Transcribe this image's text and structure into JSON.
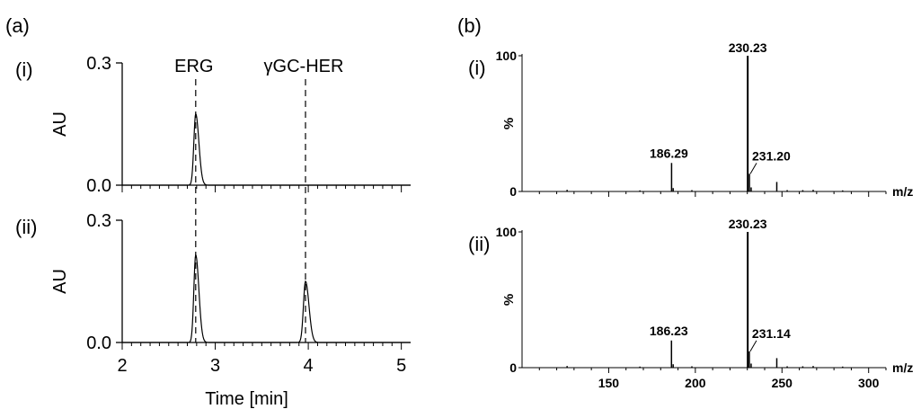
{
  "panel_labels": {
    "a": "(a)",
    "b": "(b)"
  },
  "chart_data": [
    {
      "type": "line",
      "panel": "(a)",
      "subpanel": "(i)",
      "ylabel": "AU",
      "xlabel": "",
      "xlim": [
        2,
        5.1
      ],
      "ylim": [
        0,
        0.3
      ],
      "yticks": [
        0.0,
        0.3
      ],
      "ytick_labels": [
        "0.0",
        "0.3"
      ],
      "peaks": [
        {
          "x": 2.79,
          "height": 0.175,
          "width": 0.02
        }
      ],
      "annotations": [
        {
          "text": "ERG",
          "x": 2.79
        },
        {
          "text": "γGC-HER",
          "x": 3.97
        }
      ]
    },
    {
      "type": "line",
      "panel": "(a)",
      "subpanel": "(ii)",
      "ylabel": "AU",
      "xlabel": "Time [min]",
      "xlim": [
        2,
        5.1
      ],
      "ylim": [
        0,
        0.3
      ],
      "yticks": [
        0.0,
        0.3
      ],
      "ytick_labels": [
        "0.0",
        "0.3"
      ],
      "xticks": [
        2,
        3,
        4,
        5
      ],
      "xtick_labels": [
        "2",
        "3",
        "4",
        "5"
      ],
      "peaks": [
        {
          "x": 2.79,
          "height": 0.215,
          "width": 0.02
        },
        {
          "x": 3.97,
          "height": 0.15,
          "width": 0.022
        }
      ]
    },
    {
      "type": "bar",
      "panel": "(b)",
      "subpanel": "(i)",
      "ylabel": "%",
      "xlabel": "m/z",
      "xlim": [
        100,
        310
      ],
      "ylim": [
        0,
        100
      ],
      "yticks": [
        0,
        100
      ],
      "ytick_labels": [
        "0",
        "100"
      ],
      "peaks": [
        {
          "x": 126,
          "y": 1.2
        },
        {
          "x": 168,
          "y": 0.8
        },
        {
          "x": 186.29,
          "y": 21,
          "label": "186.29"
        },
        {
          "x": 187.2,
          "y": 2.5
        },
        {
          "x": 198,
          "y": 1
        },
        {
          "x": 230.23,
          "y": 100,
          "label": "230.23"
        },
        {
          "x": 231.2,
          "y": 13,
          "label": "231.20"
        },
        {
          "x": 232.2,
          "y": 3
        },
        {
          "x": 247,
          "y": 7
        },
        {
          "x": 253,
          "y": 1
        },
        {
          "x": 262,
          "y": 1
        },
        {
          "x": 268,
          "y": 1.2
        },
        {
          "x": 285,
          "y": 0.8
        }
      ]
    },
    {
      "type": "bar",
      "panel": "(b)",
      "subpanel": "(ii)",
      "ylabel": "%",
      "xlabel": "m/z",
      "xlim": [
        100,
        310
      ],
      "ylim": [
        0,
        100
      ],
      "yticks": [
        0,
        100
      ],
      "ytick_labels": [
        "0",
        "100"
      ],
      "xticks": [
        150,
        200,
        250,
        300
      ],
      "xtick_labels": [
        "150",
        "200",
        "250",
        "300"
      ],
      "peaks": [
        {
          "x": 126,
          "y": 1.2
        },
        {
          "x": 168,
          "y": 0.8
        },
        {
          "x": 186.23,
          "y": 20,
          "label": "186.23"
        },
        {
          "x": 187.2,
          "y": 2.5
        },
        {
          "x": 198,
          "y": 1
        },
        {
          "x": 230.23,
          "y": 100,
          "label": "230.23"
        },
        {
          "x": 231.14,
          "y": 12,
          "label": "231.14"
        },
        {
          "x": 232.2,
          "y": 3
        },
        {
          "x": 247,
          "y": 7
        },
        {
          "x": 253,
          "y": 1
        },
        {
          "x": 262,
          "y": 1
        },
        {
          "x": 268,
          "y": 1.2
        },
        {
          "x": 285,
          "y": 0.8
        }
      ]
    }
  ]
}
